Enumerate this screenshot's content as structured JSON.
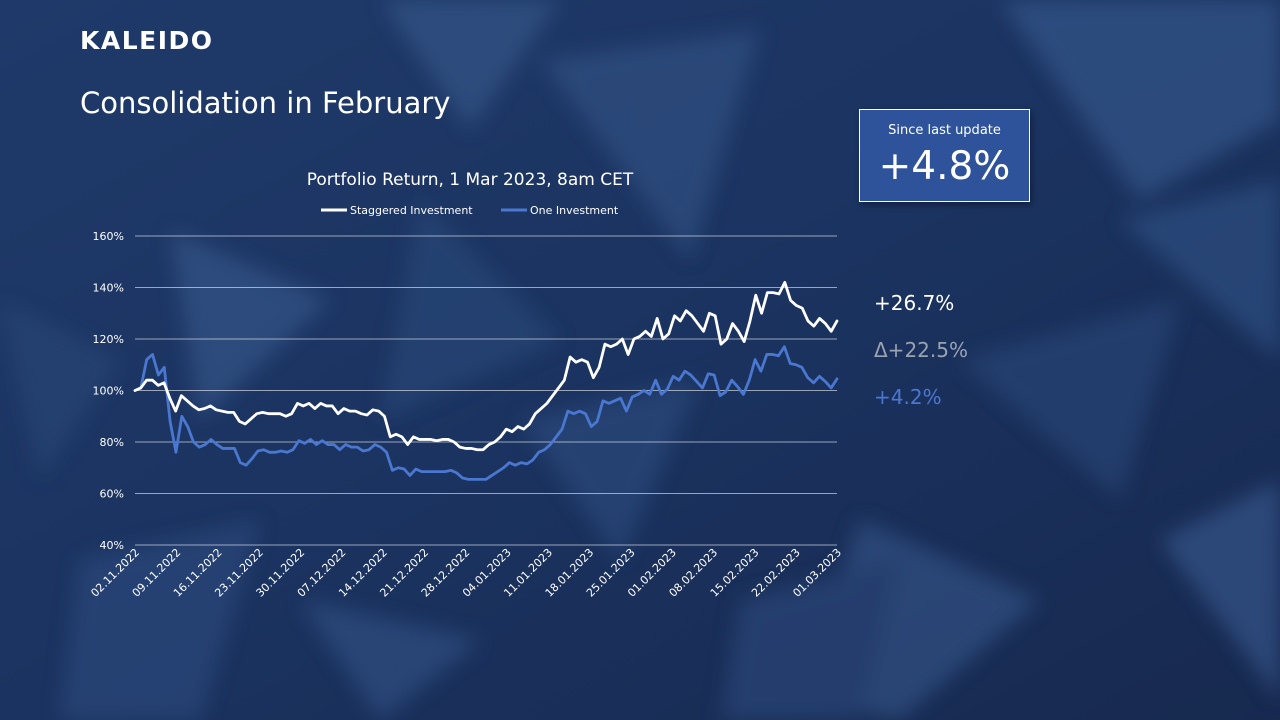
{
  "brand": {
    "logo": "KALEIDO"
  },
  "page": {
    "title": "Consolidation in February"
  },
  "kpi": {
    "label": "Since last update",
    "value": "+4.8%"
  },
  "stats": {
    "staggered": "+26.7%",
    "delta": "Δ+22.5%",
    "one": "+4.2%"
  },
  "colors": {
    "staggered": "#ffffff",
    "one": "#4a77d0",
    "delta": "#9aa3b2",
    "kpi_box": "#2f539b"
  },
  "chart_data": {
    "type": "line",
    "title": "Portfolio Return, 1 Mar 2023, 8am CET",
    "xlabel": "",
    "ylabel": "",
    "ylim": [
      40,
      160
    ],
    "yticks": [
      "40%",
      "60%",
      "80%",
      "100%",
      "120%",
      "140%",
      "160%"
    ],
    "yticks_values": [
      40,
      60,
      80,
      100,
      120,
      140,
      160
    ],
    "xticks": [
      "02.11.2022",
      "09.11.2022",
      "16.11.2022",
      "23.11.2022",
      "30.11.2022",
      "07.12.2022",
      "14.12.2022",
      "21.12.2022",
      "28.12.2022",
      "04.01.2023",
      "11.01.2023",
      "18.01.2023",
      "25.01.2023",
      "01.02.2023",
      "08.02.2023",
      "15.02.2023",
      "22.02.2023",
      "01.03.2023"
    ],
    "grid": true,
    "legend": "top-center",
    "series": [
      {
        "name": "Staggered Investment",
        "color": "#ffffff",
        "values": [
          100,
          101,
          104,
          104,
          102,
          103,
          97,
          92,
          98,
          96,
          94,
          92.5,
          93,
          94,
          92.5,
          92,
          91.5,
          91.5,
          88,
          87,
          89,
          91,
          91.5,
          91,
          91,
          91,
          90,
          91,
          95,
          94,
          95,
          93,
          95,
          94,
          94,
          91,
          93,
          92,
          92,
          91,
          90.5,
          92.5,
          92,
          90,
          82,
          83,
          82,
          79,
          82,
          81,
          81,
          81,
          80.5,
          81,
          81,
          80,
          78,
          77.5,
          77.5,
          77,
          77,
          79,
          80,
          82,
          85,
          84,
          86,
          85,
          87,
          91,
          93,
          95,
          98,
          101,
          104,
          113,
          111,
          112,
          111,
          105,
          109,
          118,
          117,
          118,
          120,
          114,
          120,
          121,
          123,
          121,
          128,
          120,
          122,
          129,
          127,
          131,
          129,
          126,
          123,
          130,
          129,
          118,
          120,
          126,
          123,
          119,
          127,
          137,
          130,
          138,
          138,
          137.5,
          142,
          135,
          133,
          132,
          127,
          125,
          128,
          126,
          123,
          127
        ]
      },
      {
        "name": "One Investment",
        "color": "#4a77d0",
        "values": [
          100,
          101,
          112,
          114,
          106,
          109,
          88,
          76,
          90,
          86,
          80,
          78,
          79,
          81,
          79,
          77.5,
          77.5,
          77.5,
          72,
          71,
          73.5,
          76.5,
          77,
          76,
          76,
          76.5,
          76,
          77,
          80.5,
          79.5,
          81,
          79,
          80.5,
          79,
          79,
          77,
          79,
          78,
          78,
          76.5,
          77,
          79,
          78,
          76,
          69,
          70,
          69.5,
          67,
          69.5,
          68.5,
          68.5,
          68.5,
          68.5,
          68.5,
          69,
          68,
          66,
          65.5,
          65.5,
          65.5,
          65.5,
          67,
          68.5,
          70,
          72,
          71,
          72,
          71.5,
          73,
          76,
          77,
          79,
          82,
          85,
          92,
          91,
          92,
          91,
          86,
          88,
          96,
          95,
          96,
          97,
          92,
          97.5,
          98.5,
          100,
          98.5,
          104,
          98.5,
          100.5,
          105.5,
          104,
          107.5,
          106,
          103.5,
          101,
          106.5,
          106,
          98,
          99.5,
          104,
          101.5,
          98.5,
          104,
          112,
          107.5,
          114,
          114,
          113.5,
          117,
          110.5,
          110,
          109,
          105,
          103,
          105.5,
          103.5,
          101,
          104.5
        ]
      }
    ]
  }
}
